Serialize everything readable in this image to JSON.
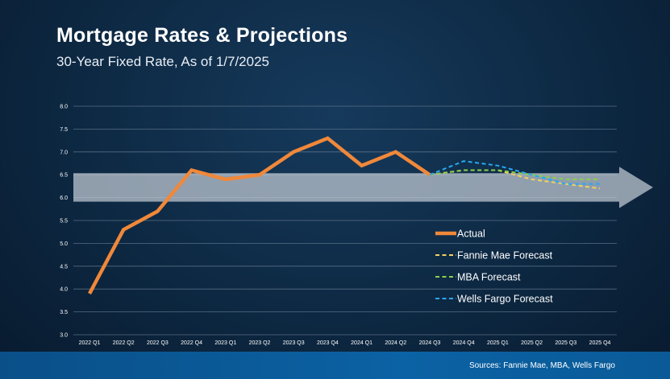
{
  "title": "Mortgage Rates & Projections",
  "subtitle": "30-Year Fixed Rate, As of 1/7/2025",
  "source": "Sources: Fannie Mae, MBA, Wells Fargo",
  "colors": {
    "actual": "#f0883a",
    "fannie": "#f2d161",
    "mba": "#8cd048",
    "wells": "#29a8f0",
    "band": "#c4ccd6",
    "grid": "#6f8399"
  },
  "chart_data": {
    "type": "line",
    "title": "Mortgage Rates & Projections",
    "subtitle": "30-Year Fixed Rate, As of 1/7/2025",
    "categories": [
      "2022 Q1",
      "2022 Q2",
      "2022 Q3",
      "2022 Q4",
      "2023 Q1",
      "2023 Q2",
      "2023 Q3",
      "2023 Q4",
      "2024 Q1",
      "2024 Q2",
      "2024 Q3",
      "2024 Q4",
      "2025 Q1",
      "2025 Q2",
      "2025 Q3",
      "2025 Q4"
    ],
    "y_ticks": [
      "3.0",
      "3.5",
      "4.0",
      "4.5",
      "5.0",
      "5.5",
      "6.0",
      "6.5",
      "7.0",
      "7.5",
      "8.0"
    ],
    "ylim": [
      3.0,
      8.0
    ],
    "grid": true,
    "legend_position": "right",
    "band": [
      6.0,
      6.5
    ],
    "series": [
      {
        "name": "Actual",
        "style": "solid",
        "values": [
          3.9,
          5.3,
          5.7,
          6.6,
          6.4,
          6.5,
          7.0,
          7.3,
          6.7,
          7.0,
          6.5,
          null,
          null,
          null,
          null,
          null
        ]
      },
      {
        "name": "Fannie Mae Forecast",
        "style": "dashed",
        "values": [
          null,
          null,
          null,
          null,
          null,
          null,
          null,
          null,
          null,
          null,
          6.5,
          6.6,
          6.6,
          6.4,
          6.3,
          6.2
        ]
      },
      {
        "name": "MBA Forecast",
        "style": "dashed",
        "values": [
          null,
          null,
          null,
          null,
          null,
          null,
          null,
          null,
          null,
          null,
          6.5,
          6.6,
          6.6,
          6.5,
          6.4,
          6.4
        ]
      },
      {
        "name": "Wells Fargo Forecast",
        "style": "dashed",
        "values": [
          null,
          null,
          null,
          null,
          null,
          null,
          null,
          null,
          null,
          null,
          6.5,
          6.8,
          6.7,
          6.5,
          6.3,
          6.3
        ]
      }
    ]
  }
}
